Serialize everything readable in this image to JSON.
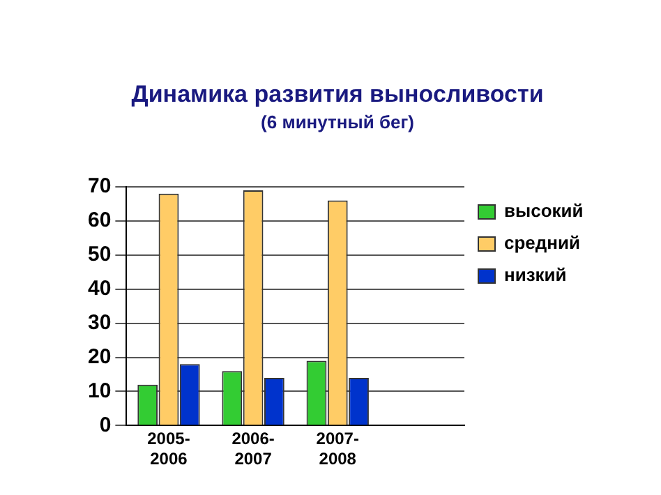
{
  "chart_data": {
    "type": "bar",
    "title": "Динамика развития выносливости",
    "subtitle": "(6 минутный бег)",
    "categories": [
      "2005-2006",
      "2006-2007",
      "2007-2008",
      null
    ],
    "series": [
      {
        "name": "высокий",
        "color": "#33cc33",
        "values": [
          12,
          16,
          19,
          null
        ]
      },
      {
        "name": "средний",
        "color": "#ffcc66",
        "values": [
          68,
          69,
          66,
          null
        ]
      },
      {
        "name": "низкий",
        "color": "#0033cc",
        "values": [
          18,
          14,
          14,
          null
        ]
      }
    ],
    "ylim": [
      0,
      70
    ],
    "yticks": [
      0,
      10,
      20,
      30,
      40,
      50,
      60,
      70
    ],
    "grid": "y",
    "legend": "right"
  }
}
